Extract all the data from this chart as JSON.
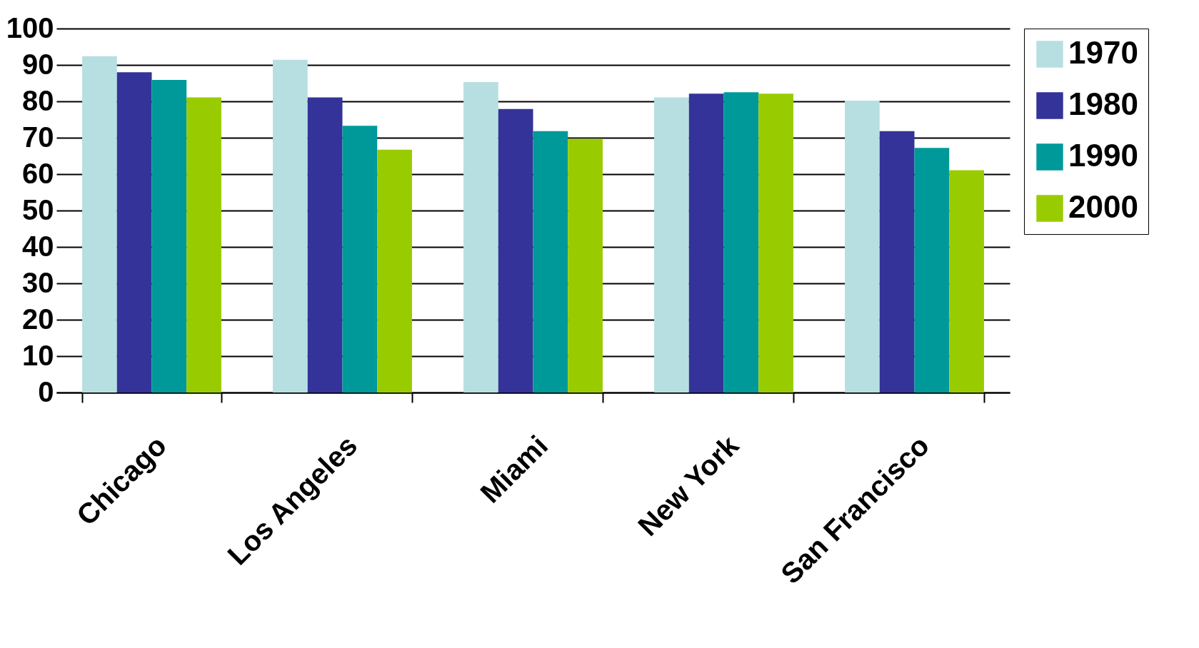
{
  "chart_data": {
    "type": "bar",
    "categories": [
      "Chicago",
      "Los Angeles",
      "Miami",
      "New York",
      "San Francisco"
    ],
    "series": [
      {
        "name": "1970",
        "color": "#b7dfe1",
        "values": [
          92.4,
          91.4,
          85.3,
          81.1,
          80.2
        ]
      },
      {
        "name": "1980",
        "color": "#333399",
        "values": [
          88.0,
          81.1,
          77.9,
          82.1,
          71.8
        ]
      },
      {
        "name": "1990",
        "color": "#009999",
        "values": [
          85.9,
          73.3,
          71.8,
          82.5,
          67.2
        ]
      },
      {
        "name": "2000",
        "color": "#99cc00",
        "values": [
          81.1,
          66.7,
          69.7,
          82.1,
          61.1
        ]
      }
    ],
    "ylim": [
      0,
      100
    ],
    "yticks": [
      0,
      10,
      20,
      30,
      40,
      50,
      60,
      70,
      80,
      90,
      100
    ],
    "grid": "y",
    "legend": "right"
  }
}
